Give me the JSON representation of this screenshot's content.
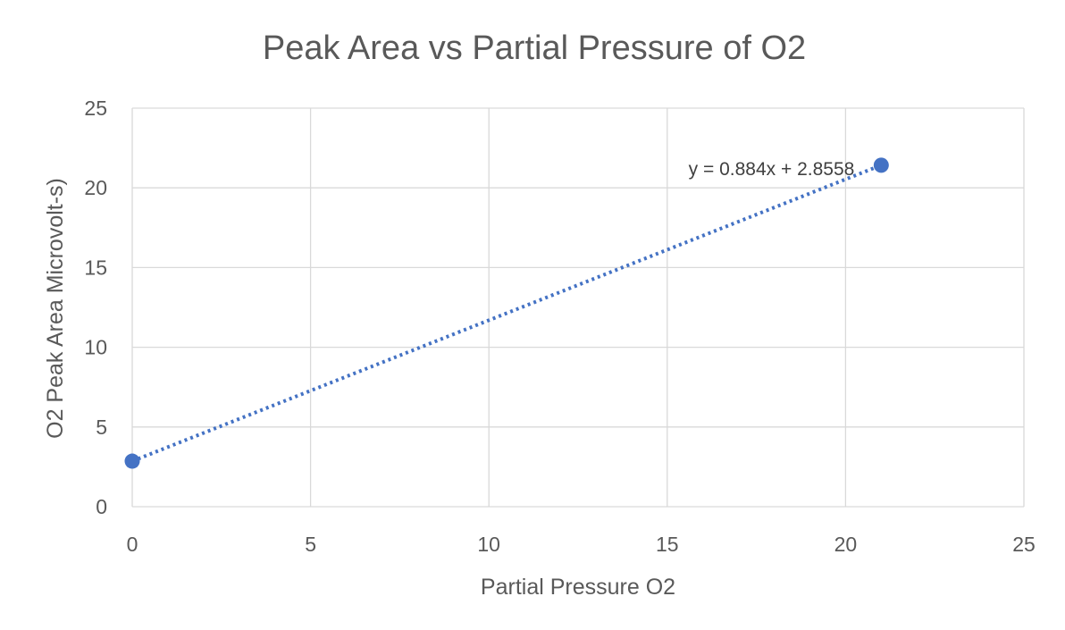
{
  "chart_data": {
    "type": "scatter",
    "title": "Peak Area vs Partial Pressure of O2",
    "xlabel": "Partial Pressure O2",
    "ylabel": "O2 Peak Area Microvolt-s)",
    "xlim": [
      0,
      25
    ],
    "ylim": [
      0,
      25
    ],
    "xticks": [
      "0",
      "5",
      "10",
      "15",
      "20",
      "25"
    ],
    "yticks": [
      "0",
      "5",
      "10",
      "15",
      "20",
      "25"
    ],
    "grid": true,
    "series": [
      {
        "points": [
          {
            "x": 0,
            "y": 2.8558
          },
          {
            "x": 21,
            "y": 21.42
          }
        ],
        "color": "#4472c4"
      }
    ],
    "trendline": {
      "type": "linear",
      "slope": 0.884,
      "intercept": 2.8558,
      "equation": "y = 0.884x + 2.8558",
      "style": "dotted",
      "color": "#4472c4"
    }
  }
}
